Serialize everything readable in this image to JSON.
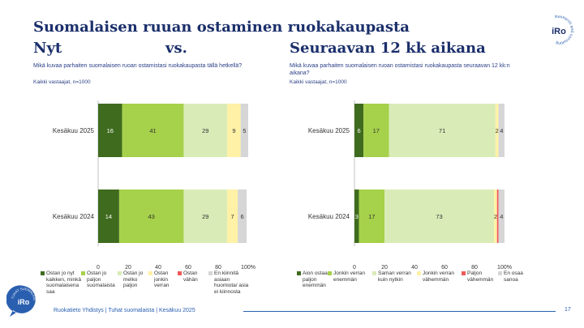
{
  "page": {
    "title_line1": "Suomalaisen ruuan ostaminen ruokakaupasta",
    "title_left": "Nyt",
    "title_vs": "vs.",
    "title_right": "Seuraavan 12 kk aikana",
    "footer": "Ruokatieto Yhdistys | Tuhat suomalaista | Kesäkuu 2025",
    "page_number": "17",
    "logo_text": "iRo",
    "logo_ring_text": "Research and consulting",
    "badge_ring_text": "TUHAT SUOMALAISTA",
    "colors": {
      "navy": "#1b2f6b",
      "accent_blue": "#2a5fb0"
    }
  },
  "chart_data": [
    {
      "type": "bar",
      "orientation": "horizontal",
      "stacked": true,
      "question": "Mikä kuvaa parhaiten suomalaisen ruoan ostamistasi ruokakaupasta tällä hetkellä?",
      "respondents": "Kaikki vastaajat, n=1000",
      "categories": [
        "Kesäkuu 2025",
        "Kesäkuu 2024"
      ],
      "xlim": [
        0,
        100
      ],
      "xticks": [
        "0",
        "20",
        "40",
        "60",
        "80",
        "100%"
      ],
      "series": [
        {
          "name": "Ostan jo nyt kaikken, minkä suomalaisena saa",
          "color": "#3f6b1e",
          "values": [
            16,
            14
          ]
        },
        {
          "name": "Ostan jo paljon suomalaista",
          "color": "#a6d14a",
          "values": [
            41,
            43
          ]
        },
        {
          "name": "Ostan jo melko paljon",
          "color": "#d9ecb8",
          "values": [
            29,
            29
          ]
        },
        {
          "name": "Ostan jonkin verran",
          "color": "#fff1a6",
          "values": [
            9,
            7
          ]
        },
        {
          "name": "Ostan vähän",
          "color": "#ee5a5a",
          "values": [
            0,
            0
          ]
        },
        {
          "name": "En kiinnitä asiaan huomiota/ asia ei kiinnosta",
          "color": "#d6d6d6",
          "values": [
            5,
            6
          ]
        }
      ]
    },
    {
      "type": "bar",
      "orientation": "horizontal",
      "stacked": true,
      "question": "Mikä kuvaa parhaiten suomalaisen ruoan ostamistasi ruokakaupasta seuraavan 12 kk:n aikana?",
      "respondents": "Kaikki vastaajat, n=1000",
      "categories": [
        "Kesäkuu 2025",
        "Kesäkuu 2024"
      ],
      "xlim": [
        0,
        100
      ],
      "xticks": [
        "0",
        "20",
        "40",
        "60",
        "80",
        "100%"
      ],
      "series": [
        {
          "name": "Aion ostaa paljon enemmän",
          "color": "#3f6b1e",
          "values": [
            6,
            3
          ]
        },
        {
          "name": "Jonkin verran enemmän",
          "color": "#a6d14a",
          "values": [
            17,
            17
          ]
        },
        {
          "name": "Saman verran kuin nytkin",
          "color": "#d9ecb8",
          "values": [
            71,
            73
          ]
        },
        {
          "name": "Jonkin verran vähemmän",
          "color": "#fff1a6",
          "values": [
            2,
            2
          ]
        },
        {
          "name": "Paljon vähemmän",
          "color": "#ee5a5a",
          "values": [
            0,
            1
          ]
        },
        {
          "name": "En osaa sanoa",
          "color": "#d6d6d6",
          "values": [
            4,
            4
          ]
        }
      ],
      "labels": [
        [
          "6",
          "17",
          "71",
          "2",
          "",
          "4"
        ],
        [
          "3",
          "17",
          "73",
          "2",
          "",
          "4"
        ]
      ]
    }
  ]
}
